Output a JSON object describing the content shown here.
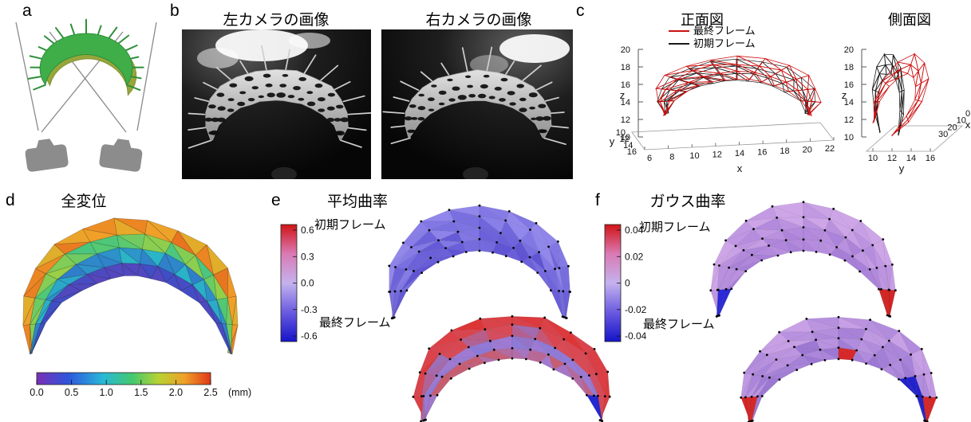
{
  "figure": {
    "panel_labels": {
      "a": "a",
      "b": "b",
      "c": "c",
      "d": "d",
      "e": "e",
      "f": "f"
    }
  },
  "panel_b": {
    "left_title": "左カメラの画像",
    "right_title": "右カメラの画像"
  },
  "panel_c": {
    "front_title": "正面図",
    "side_title": "側面図",
    "legend": [
      {
        "label": "最終フレーム",
        "color": "#cc1111"
      },
      {
        "label": "初期フレーム",
        "color": "#1a1a1a"
      }
    ],
    "front": {
      "x_label": "x",
      "y_label": "y",
      "z_label": "z",
      "x_ticks": [
        "6",
        "8",
        "10",
        "12",
        "14",
        "16",
        "18",
        "20",
        "22"
      ],
      "y_ticks": [
        "10",
        "12",
        "14",
        "16"
      ],
      "z_ticks": [
        "20",
        "18",
        "16",
        "14",
        "12",
        "10"
      ]
    },
    "side": {
      "x_label": "x",
      "y_label": "y",
      "z_label": "z",
      "x_ticks": [
        "0",
        "10",
        "20",
        "30"
      ],
      "y_ticks": [
        "10",
        "12",
        "14",
        "16"
      ],
      "z_ticks": [
        "20",
        "18",
        "16",
        "14",
        "12",
        "10"
      ]
    }
  },
  "panel_d": {
    "title": "全変位",
    "colorbar_ticks": [
      "0.0",
      "0.5",
      "1.0",
      "1.5",
      "2.0",
      "2.5"
    ],
    "unit": "(mm)"
  },
  "panel_e": {
    "title": "平均曲率",
    "colorbar_ticks": [
      "0.6",
      "0.3",
      "0.0",
      "-0.3",
      "-0.6"
    ],
    "initial_label": "初期フレーム",
    "final_label": "最終フレーム"
  },
  "panel_f": {
    "title": "ガウス曲率",
    "colorbar_ticks": [
      "0.04",
      "0.02",
      "0",
      "-0.02",
      "-0.04"
    ],
    "initial_label": "初期フレーム",
    "final_label": "最終フレーム"
  },
  "colors": {
    "wire_red": "#cc1111",
    "wire_black": "#1a1a1a",
    "leaf_green": "#3fae49",
    "leaf_back": "#97a63c",
    "leaf_edge": "#2e8f39",
    "camera_gray": "#8c8c8c",
    "line_gray": "#8a8a8a",
    "displacement_stops": [
      [
        0,
        "#e04818"
      ],
      [
        0.14,
        "#f0a028"
      ],
      [
        0.28,
        "#b7d233"
      ],
      [
        0.42,
        "#4ec878"
      ],
      [
        0.58,
        "#2ab4c8"
      ],
      [
        0.76,
        "#3353cc"
      ],
      [
        1,
        "#6a3fb4"
      ]
    ],
    "mean_initial_stops": [
      [
        0,
        "#9288ec"
      ],
      [
        1,
        "#6054d4"
      ]
    ],
    "mean_final_stops": [
      [
        0,
        "#de3434"
      ],
      [
        0.3,
        "#d84a56"
      ],
      [
        0.55,
        "#8a7ad8"
      ],
      [
        0.75,
        "#a07ad2"
      ],
      [
        1,
        "#cc5a66"
      ]
    ],
    "gauss_initial_stops": [
      [
        0,
        "#cea6e8"
      ],
      [
        1,
        "#a87fd8"
      ]
    ],
    "gauss_final_stops": [
      [
        0,
        "#c8a0e6"
      ],
      [
        1,
        "#9c78d4"
      ]
    ],
    "diverging_bar_stops": [
      [
        0,
        "#d01414"
      ],
      [
        0.25,
        "#da7ab4"
      ],
      [
        0.5,
        "#c4b2ee"
      ],
      [
        0.75,
        "#6a5ae0"
      ],
      [
        1,
        "#1414c8"
      ]
    ],
    "rainbow_bar_stops": [
      [
        0,
        "#7a2fb4"
      ],
      [
        0.18,
        "#2f55dc"
      ],
      [
        0.38,
        "#28b8d8"
      ],
      [
        0.55,
        "#44c86e"
      ],
      [
        0.7,
        "#b7d233"
      ],
      [
        0.85,
        "#f0a028"
      ],
      [
        1,
        "#e03818"
      ]
    ]
  },
  "chart_data": [
    {
      "type": "line",
      "subtype": "3d-wireframe-mesh",
      "title": "正面図",
      "series": [
        {
          "name": "最終フレーム",
          "color": "#cc1111"
        },
        {
          "name": "初期フレーム",
          "color": "#1a1a1a"
        }
      ],
      "xlabel": "x",
      "ylabel": "y",
      "zlabel": "z",
      "x_ticks": [
        6,
        8,
        10,
        12,
        14,
        16,
        18,
        20,
        22
      ],
      "y_ticks": [
        10,
        12,
        14,
        16
      ],
      "z_ticks": [
        10,
        12,
        14,
        16,
        18,
        20
      ],
      "xlim": [
        6,
        22
      ],
      "ylim": [
        10,
        16
      ],
      "zlim": [
        10,
        20
      ],
      "legend_position": "top"
    },
    {
      "type": "line",
      "subtype": "3d-wireframe-mesh",
      "title": "側面図",
      "series": [
        {
          "name": "最終フレーム",
          "color": "#cc1111"
        },
        {
          "name": "初期フレーム",
          "color": "#1a1a1a"
        }
      ],
      "xlabel": "x",
      "ylabel": "y",
      "zlabel": "z",
      "x_ticks": [
        0,
        10,
        20,
        30
      ],
      "y_ticks": [
        10,
        12,
        14,
        16
      ],
      "z_ticks": [
        10,
        12,
        14,
        16,
        18,
        20
      ],
      "xlim": [
        0,
        30
      ],
      "ylim": [
        10,
        16
      ],
      "zlim": [
        10,
        20
      ]
    },
    {
      "type": "heatmap",
      "subtype": "triangulated-surface",
      "title": "全変位",
      "colorbar": {
        "orientation": "horizontal",
        "ticks": [
          0.0,
          0.5,
          1.0,
          1.5,
          2.0,
          2.5
        ],
        "range": [
          0,
          2.5
        ],
        "unit": "mm",
        "colormap": "rainbow"
      },
      "values_summary": "outer rim ≈2.0-2.5 mm (red/orange), mid rows ≈1.0-1.5 mm (green/cyan), inner rim ≈0-0.5 mm (blue/purple)"
    },
    {
      "type": "heatmap",
      "subtype": "triangulated-surface",
      "title": "平均曲率",
      "frames": [
        "初期フレーム",
        "最終フレーム"
      ],
      "colorbar": {
        "orientation": "vertical",
        "ticks": [
          0.6,
          0.3,
          0.0,
          -0.3,
          -0.6
        ],
        "range": [
          -0.6,
          0.6
        ],
        "colormap": "red-purple-blue"
      },
      "values_summary": "initial frame ≈-0.2 uniform blue-purple; final frame ≈+0.3 to +0.6 red with inner purple band and blue patch at lower right"
    },
    {
      "type": "heatmap",
      "subtype": "triangulated-surface",
      "title": "ガウス曲率",
      "frames": [
        "初期フレーム",
        "最終フレーム"
      ],
      "colorbar": {
        "orientation": "vertical",
        "ticks": [
          0.04,
          0.02,
          0,
          -0.02,
          -0.04
        ],
        "range": [
          -0.04,
          0.04
        ],
        "colormap": "red-purple-blue"
      },
      "values_summary": "both frames ≈0 pale violet with localized +0.04 red patches at horns and -0.04 blue patches near edges"
    }
  ]
}
